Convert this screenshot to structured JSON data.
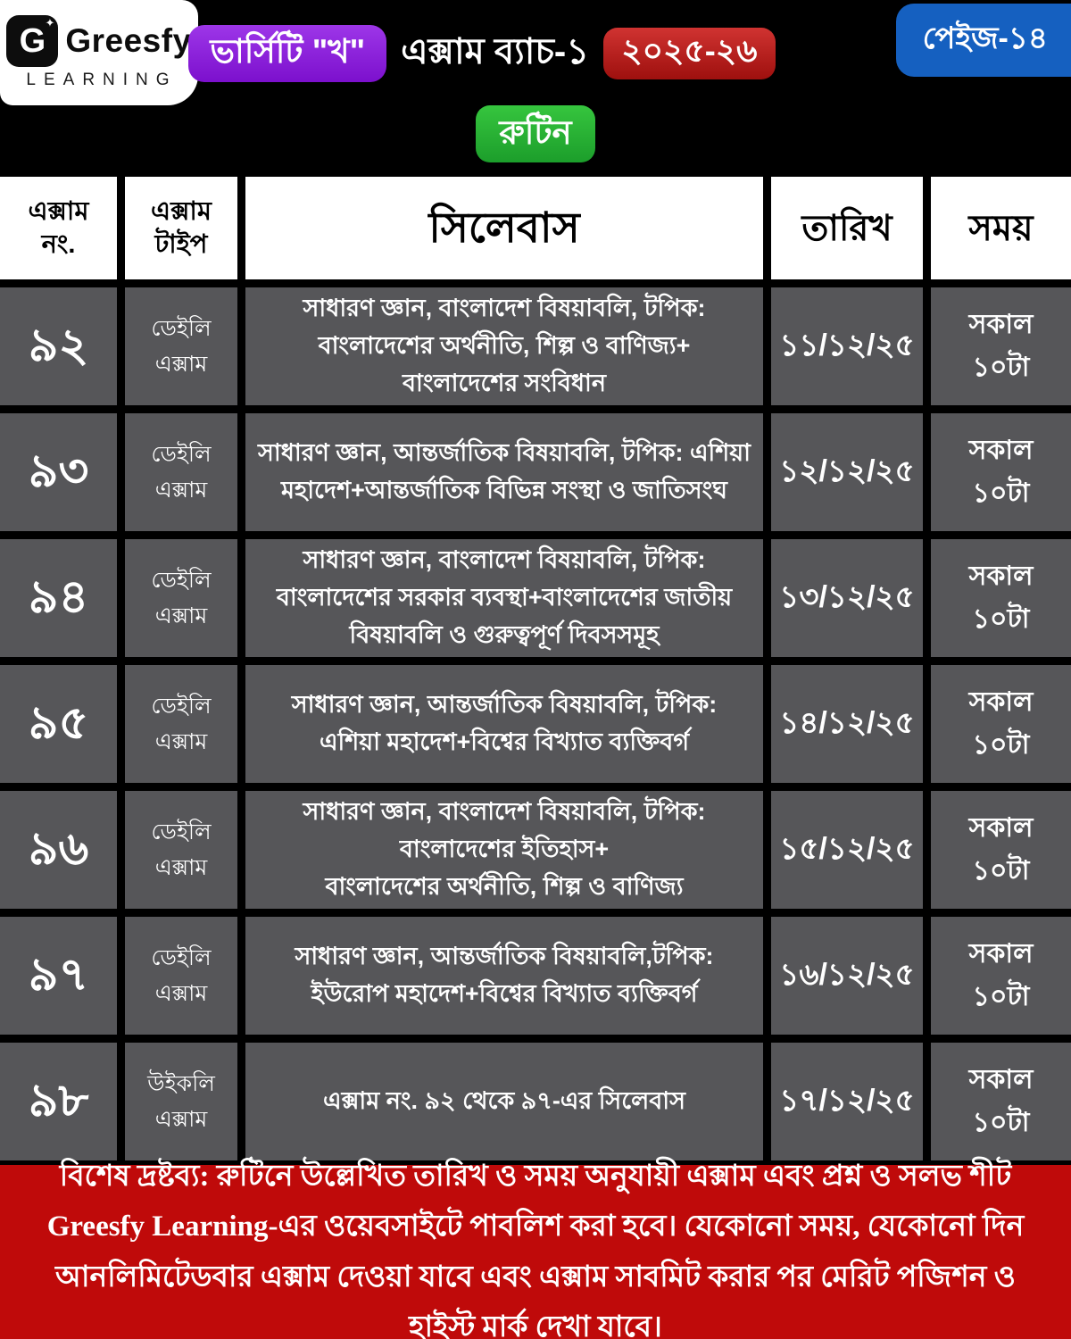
{
  "brand": {
    "name": "Greesfy",
    "subtitle": "LEARNING",
    "logo_letter": "G",
    "logo_spark": "✦"
  },
  "header": {
    "program_badge": "ভার্সিটি \"খ\"",
    "title": "এক্সাম ব্যাচ-১",
    "session_badge": "২০২৫-২৬",
    "page_badge": "পেইজ-১৪",
    "routine_badge": "রুটিন"
  },
  "colors": {
    "accent_purple": "#8b1fd6",
    "accent_red": "#c42020",
    "accent_green": "#2db83d",
    "accent_blue": "#1560c0",
    "footer_red": "#bf0a0a",
    "cell_gray": "#565659",
    "page_black": "#000000",
    "header_white": "#ffffff"
  },
  "table": {
    "headers": [
      "এক্সাম\nনং.",
      "এক্সাম\nটাইপ",
      "সিলেবাস",
      "তারিখ",
      "সময়"
    ],
    "rows": [
      {
        "no": "৯২",
        "type": "ডেইলি\nএক্সাম",
        "syllabus": "সাধারণ জ্ঞান, বাংলাদেশ বিষয়াবলি, টপিক:\nবাংলাদেশের অর্থনীতি, শিল্প ও বাণিজ্য+\nবাংলাদেশের সংবিধান",
        "date": "১১/১২/২৫",
        "time": "সকাল\n১০টা"
      },
      {
        "no": "৯৩",
        "type": "ডেইলি\nএক্সাম",
        "syllabus": "সাধারণ জ্ঞান, আন্তর্জাতিক বিষয়াবলি, টপিক: এশিয়া\nমহাদেশ+আন্তর্জাতিক বিভিন্ন সংস্থা ও জাতিসংঘ",
        "date": "১২/১২/২৫",
        "time": "সকাল\n১০টা"
      },
      {
        "no": "৯৪",
        "type": "ডেইলি\nএক্সাম",
        "syllabus": "সাধারণ জ্ঞান, বাংলাদেশ বিষয়াবলি, টপিক:\nবাংলাদেশের সরকার ব্যবস্থা+বাংলাদেশের জাতীয়\nবিষয়াবলি ও গুরুত্বপূর্ণ দিবসসমূহ",
        "date": "১৩/১২/২৫",
        "time": "সকাল\n১০টা"
      },
      {
        "no": "৯৫",
        "type": "ডেইলি\nএক্সাম",
        "syllabus": "সাধারণ জ্ঞান, আন্তর্জাতিক বিষয়াবলি, টপিক:\nএশিয়া মহাদেশ+বিশ্বের বিখ্যাত ব্যক্তিবর্গ",
        "date": "১৪/১২/২৫",
        "time": "সকাল\n১০টা"
      },
      {
        "no": "৯৬",
        "type": "ডেইলি\nএক্সাম",
        "syllabus": "সাধারণ জ্ঞান, বাংলাদেশ বিষয়াবলি, টপিক:\nবাংলাদেশের ইতিহাস+\nবাংলাদেশের অর্থনীতি, শিল্প ও বাণিজ্য",
        "date": "১৫/১২/২৫",
        "time": "সকাল\n১০টা"
      },
      {
        "no": "৯৭",
        "type": "ডেইলি\nএক্সাম",
        "syllabus": "সাধারণ জ্ঞান, আন্তর্জাতিক বিষয়াবলি,টপিক:\nইউরোপ মহাদেশ+বিশ্বের বিখ্যাত ব্যক্তিবর্গ",
        "date": "১৬/১২/২৫",
        "time": "সকাল\n১০টা"
      },
      {
        "no": "৯৮",
        "type": "উইকলি\nএক্সাম",
        "syllabus": "এক্সাম নং. ৯২ থেকে ৯৭-এর সিলেবাস",
        "date": "১৭/১২/২৫",
        "time": "সকাল\n১০টা"
      }
    ]
  },
  "footer": {
    "note": "বিশেষ দ্রষ্টব্য: রুটিনে উল্লেখিত তারিখ ও সময় অনুযায়ী এক্সাম এবং প্রশ্ন ও সলভ শীট Greesfy Learning-এর ওয়েবসাইটে পাবলিশ করা হবে। যেকোনো সময়, যেকোনো দিন আনলিমিটেডবার এক্সাম দেওয়া যাবে এবং এক্সাম সাবমিট করার পর মেরিট পজিশন ও হাইস্ট মার্ক দেখা যাবে।"
  }
}
